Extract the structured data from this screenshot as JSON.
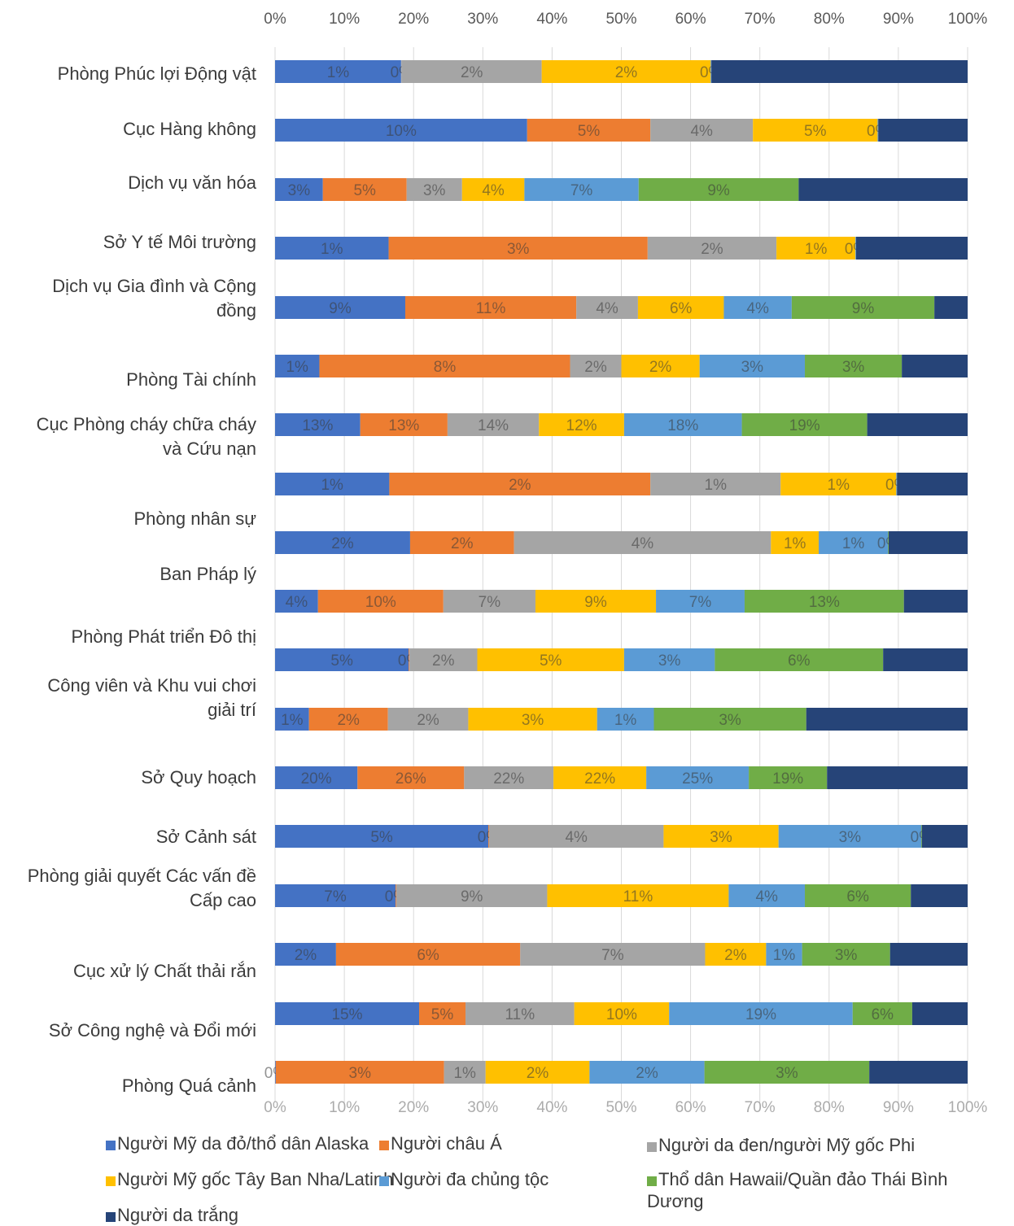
{
  "chart_data": {
    "type": "bar",
    "orientation": "horizontal",
    "stacked": "percent",
    "x_ticks": [
      "0%",
      "10%",
      "20%",
      "30%",
      "40%",
      "50%",
      "60%",
      "70%",
      "80%",
      "90%",
      "100%"
    ],
    "xlim": [
      0,
      100
    ],
    "grid": true,
    "legend_position": "bottom",
    "series_names": [
      "Người Mỹ da đỏ/thổ dân Alaska",
      "Người châu Á",
      "Người da đen/người Mỹ gốc Phi",
      "Người Mỹ gốc Tây Ban Nha/Latinh",
      "Người đa chủng tộc",
      "Thổ dân Hawaii/Quần đảo Thái Bình Dương",
      "Người da trắng"
    ],
    "series_colors": [
      "#4472c4",
      "#ed7d31",
      "#a5a5a5",
      "#ffc000",
      "#5b9bd5",
      "#70ad47",
      "#264478"
    ],
    "rows": [
      {
        "label": [
          "Phòng Phúc lợi Động vật"
        ],
        "segments": [
          {
            "s": 0,
            "share": 18.2,
            "label": "1%"
          },
          {
            "s": 2,
            "share": 0.1,
            "label": "0%"
          },
          {
            "s": 2,
            "share": 20.2,
            "label": "2%"
          },
          {
            "s": 3,
            "share": 24.4,
            "label": "2%"
          },
          {
            "s": 4,
            "share": 0.1,
            "label": "0%"
          },
          {
            "s": 6,
            "share": 37.0,
            "label": ""
          }
        ]
      },
      {
        "label": [
          "Cục Hàng không"
        ],
        "segments": [
          {
            "s": 0,
            "share": 36.4,
            "label": "10%"
          },
          {
            "s": 1,
            "share": 17.8,
            "label": "5%"
          },
          {
            "s": 2,
            "share": 14.8,
            "label": "4%"
          },
          {
            "s": 3,
            "share": 18.0,
            "label": "5%"
          },
          {
            "s": 4,
            "share": 0.1,
            "label": "0%"
          },
          {
            "s": 6,
            "share": 12.9,
            "label": ""
          }
        ]
      },
      {
        "label": [
          "Dịch vụ văn hóa"
        ],
        "segments": [
          {
            "s": 0,
            "share": 6.9,
            "label": "3%"
          },
          {
            "s": 1,
            "share": 12.1,
            "label": "5%"
          },
          {
            "s": 2,
            "share": 8.0,
            "label": "3%"
          },
          {
            "s": 3,
            "share": 9.0,
            "label": "4%"
          },
          {
            "s": 4,
            "share": 16.5,
            "label": "7%"
          },
          {
            "s": 5,
            "share": 23.1,
            "label": "9%"
          },
          {
            "s": 6,
            "share": 24.4,
            "label": ""
          }
        ]
      },
      {
        "label": [
          "Sở Y tế Môi trường"
        ],
        "segments": [
          {
            "s": 0,
            "share": 16.4,
            "label": "1%"
          },
          {
            "s": 1,
            "share": 37.4,
            "label": "3%"
          },
          {
            "s": 2,
            "share": 18.6,
            "label": "2%"
          },
          {
            "s": 3,
            "share": 11.4,
            "label": "1%"
          },
          {
            "s": 4,
            "share": 0.1,
            "label": "0%"
          },
          {
            "s": 6,
            "share": 16.1,
            "label": ""
          }
        ]
      },
      {
        "label": [
          "Dịch vụ Gia đình và Cộng",
          "đồng"
        ],
        "segments": [
          {
            "s": 0,
            "share": 18.8,
            "label": "9%"
          },
          {
            "s": 1,
            "share": 24.7,
            "label": "11%"
          },
          {
            "s": 2,
            "share": 8.9,
            "label": "4%"
          },
          {
            "s": 3,
            "share": 12.4,
            "label": "6%"
          },
          {
            "s": 4,
            "share": 9.8,
            "label": "4%"
          },
          {
            "s": 5,
            "share": 20.6,
            "label": "9%"
          },
          {
            "s": 6,
            "share": 4.8,
            "label": ""
          }
        ]
      },
      {
        "label": [
          "Phòng Tài chính"
        ],
        "segments": [
          {
            "s": 0,
            "share": 6.4,
            "label": "1%"
          },
          {
            "s": 1,
            "share": 36.2,
            "label": "8%"
          },
          {
            "s": 2,
            "share": 7.4,
            "label": "2%"
          },
          {
            "s": 3,
            "share": 11.3,
            "label": "2%"
          },
          {
            "s": 4,
            "share": 15.2,
            "label": "3%"
          },
          {
            "s": 5,
            "share": 14.0,
            "label": "3%"
          },
          {
            "s": 6,
            "share": 9.5,
            "label": ""
          }
        ]
      },
      {
        "label": [
          "Cục Phòng cháy chữa cháy",
          "và Cứu nạn"
        ],
        "segments": [
          {
            "s": 0,
            "share": 12.3,
            "label": "13%"
          },
          {
            "s": 1,
            "share": 12.6,
            "label": "13%"
          },
          {
            "s": 2,
            "share": 13.2,
            "label": "14%"
          },
          {
            "s": 3,
            "share": 12.3,
            "label": "12%"
          },
          {
            "s": 4,
            "share": 17.0,
            "label": "18%"
          },
          {
            "s": 5,
            "share": 18.1,
            "label": "19%"
          },
          {
            "s": 6,
            "share": 14.5,
            "label": ""
          }
        ]
      },
      {
        "label": [
          ""
        ],
        "segments": [
          {
            "s": 0,
            "share": 16.5,
            "label": "1%"
          },
          {
            "s": 1,
            "share": 37.7,
            "label": "2%"
          },
          {
            "s": 2,
            "share": 18.8,
            "label": "1%"
          },
          {
            "s": 3,
            "share": 16.7,
            "label": "1%"
          },
          {
            "s": 4,
            "share": 0.1,
            "label": "0%"
          },
          {
            "s": 6,
            "share": 10.2,
            "label": ""
          }
        ]
      },
      {
        "label": [
          "Phòng nhân sự"
        ],
        "label_only": true
      },
      {
        "label": [
          ""
        ],
        "segments": [
          {
            "s": 0,
            "share": 19.5,
            "label": "2%"
          },
          {
            "s": 1,
            "share": 15.0,
            "label": "2%"
          },
          {
            "s": 2,
            "share": 37.1,
            "label": "4%"
          },
          {
            "s": 3,
            "share": 6.9,
            "label": "1%"
          },
          {
            "s": 4,
            "share": 10.0,
            "label": "1%"
          },
          {
            "s": 5,
            "share": 0.1,
            "label": "0%"
          },
          {
            "s": 6,
            "share": 11.4,
            "label": ""
          }
        ]
      },
      {
        "label": [
          "Ban Pháp lý"
        ],
        "label_only": true
      },
      {
        "label": [
          ""
        ],
        "segments": [
          {
            "s": 0,
            "share": 6.2,
            "label": "4%"
          },
          {
            "s": 1,
            "share": 18.1,
            "label": "10%"
          },
          {
            "s": 2,
            "share": 13.3,
            "label": "7%"
          },
          {
            "s": 3,
            "share": 17.4,
            "label": "9%"
          },
          {
            "s": 4,
            "share": 12.8,
            "label": "7%"
          },
          {
            "s": 5,
            "share": 23.0,
            "label": "13%"
          },
          {
            "s": 6,
            "share": 9.2,
            "label": ""
          }
        ]
      },
      {
        "label": [
          "Phòng Phát triển Đô thị"
        ],
        "label_only": true
      },
      {
        "label": [
          ""
        ],
        "segments": [
          {
            "s": 0,
            "share": 19.3,
            "label": "5%"
          },
          {
            "s": 1,
            "share": 0.1,
            "label": "0%"
          },
          {
            "s": 2,
            "share": 9.8,
            "label": "2%"
          },
          {
            "s": 3,
            "share": 21.2,
            "label": "5%"
          },
          {
            "s": 4,
            "share": 13.1,
            "label": "3%"
          },
          {
            "s": 5,
            "share": 24.3,
            "label": "6%"
          },
          {
            "s": 6,
            "share": 12.2,
            "label": ""
          }
        ]
      },
      {
        "label": [
          "Công viên và Khu vui chơi",
          "giải trí"
        ],
        "segments": [
          {
            "s": 0,
            "share": 4.9,
            "label": "1%"
          },
          {
            "s": 1,
            "share": 11.4,
            "label": "2%"
          },
          {
            "s": 2,
            "share": 11.6,
            "label": "2%"
          },
          {
            "s": 3,
            "share": 18.6,
            "label": "3%"
          },
          {
            "s": 4,
            "share": 8.2,
            "label": "1%"
          },
          {
            "s": 5,
            "share": 22.0,
            "label": "3%"
          },
          {
            "s": 6,
            "share": 23.3,
            "label": ""
          }
        ]
      },
      {
        "label": [
          "Sở Quy hoạch"
        ],
        "segments": [
          {
            "s": 0,
            "share": 11.9,
            "label": "20%"
          },
          {
            "s": 1,
            "share": 15.4,
            "label": "26%"
          },
          {
            "s": 2,
            "share": 12.9,
            "label": "22%"
          },
          {
            "s": 3,
            "share": 13.4,
            "label": "22%"
          },
          {
            "s": 4,
            "share": 14.8,
            "label": "25%"
          },
          {
            "s": 5,
            "share": 11.3,
            "label": "19%"
          },
          {
            "s": 6,
            "share": 20.3,
            "label": ""
          }
        ]
      },
      {
        "label": [
          "Sở Cảnh sát"
        ],
        "segments": [
          {
            "s": 0,
            "share": 30.8,
            "label": "5%"
          },
          {
            "s": 1,
            "share": 0.1,
            "label": "0%"
          },
          {
            "s": 2,
            "share": 25.2,
            "label": "4%"
          },
          {
            "s": 3,
            "share": 16.6,
            "label": "3%"
          },
          {
            "s": 4,
            "share": 20.6,
            "label": "3%"
          },
          {
            "s": 5,
            "share": 0.1,
            "label": "0%"
          },
          {
            "s": 6,
            "share": 6.6,
            "label": ""
          }
        ]
      },
      {
        "label": [
          "Phòng giải quyết Các vấn đề",
          "Cấp cao"
        ],
        "segments": [
          {
            "s": 0,
            "share": 17.4,
            "label": "7%"
          },
          {
            "s": 1,
            "share": 0.1,
            "label": "0%"
          },
          {
            "s": 2,
            "share": 21.8,
            "label": "9%"
          },
          {
            "s": 3,
            "share": 26.2,
            "label": "11%"
          },
          {
            "s": 4,
            "share": 11.0,
            "label": "4%"
          },
          {
            "s": 5,
            "share": 15.3,
            "label": "6%"
          },
          {
            "s": 6,
            "share": 8.2,
            "label": ""
          }
        ]
      },
      {
        "label": [
          "Cục xử lý Chất thải rắn"
        ],
        "segments": [
          {
            "s": 0,
            "share": 8.8,
            "label": "2%"
          },
          {
            "s": 1,
            "share": 26.6,
            "label": "6%"
          },
          {
            "s": 2,
            "share": 26.7,
            "label": "7%"
          },
          {
            "s": 3,
            "share": 8.8,
            "label": "2%"
          },
          {
            "s": 4,
            "share": 5.2,
            "label": "1%"
          },
          {
            "s": 5,
            "share": 12.7,
            "label": "3%"
          },
          {
            "s": 6,
            "share": 11.2,
            "label": ""
          }
        ]
      },
      {
        "label": [
          "Sở Công nghệ và Đổi mới"
        ],
        "segments": [
          {
            "s": 0,
            "share": 20.8,
            "label": "15%"
          },
          {
            "s": 1,
            "share": 6.7,
            "label": "5%"
          },
          {
            "s": 2,
            "share": 15.7,
            "label": "11%"
          },
          {
            "s": 3,
            "share": 13.7,
            "label": "10%"
          },
          {
            "s": 4,
            "share": 26.5,
            "label": "19%"
          },
          {
            "s": 5,
            "share": 8.6,
            "label": "6%"
          },
          {
            "s": 6,
            "share": 8.0,
            "label": ""
          }
        ]
      },
      {
        "label": [
          "Phòng Quá cảnh"
        ],
        "segments": [
          {
            "s": 0,
            "share": 0.1,
            "label": "0%"
          },
          {
            "s": 1,
            "share": 24.3,
            "label": "3%"
          },
          {
            "s": 2,
            "share": 6.0,
            "label": "1%"
          },
          {
            "s": 3,
            "share": 15.0,
            "label": "2%"
          },
          {
            "s": 4,
            "share": 16.6,
            "label": "2%"
          },
          {
            "s": 5,
            "share": 23.8,
            "label": "3%"
          },
          {
            "s": 6,
            "share": 14.2,
            "label": ""
          }
        ]
      }
    ]
  },
  "legend": [
    {
      "label": "Người Mỹ da đỏ/thổ dân Alaska",
      "color": "#4472c4"
    },
    {
      "label": "Người châu Á",
      "color": "#ed7d31"
    },
    {
      "label": "Người da đen/người Mỹ gốc Phi",
      "color": "#a5a5a5"
    },
    {
      "label": "Người Mỹ gốc Tây Ban Nha/Latinh",
      "color": "#ffc000"
    },
    {
      "label": "Người đa chủng tộc",
      "color": "#5b9bd5"
    },
    {
      "label": "Thổ dân Hawaii/Quần đảo Thái Bình Dương",
      "color": "#70ad47"
    },
    {
      "label": "Người da trắng",
      "color": "#264478"
    }
  ]
}
